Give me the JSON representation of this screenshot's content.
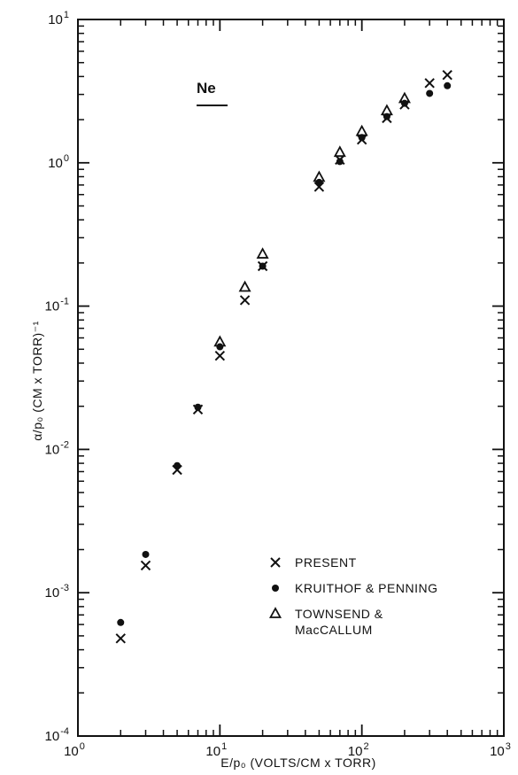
{
  "chart_data": {
    "type": "scatter",
    "annotation": "Ne",
    "xlabel": "E/p₀ (VOLTS/CM x TORR)",
    "ylabel": "α/p₀ (CM x TORR)⁻¹",
    "x_scale": "log",
    "y_scale": "log",
    "xlim": [
      1,
      1000
    ],
    "ylim": [
      0.0001,
      10
    ],
    "x_ticks": [
      {
        "value": 1,
        "base": "10",
        "exp": "0"
      },
      {
        "value": 10,
        "base": "10",
        "exp": "1"
      },
      {
        "value": 100,
        "base": "10",
        "exp": "2"
      },
      {
        "value": 1000,
        "base": "10",
        "exp": "3"
      }
    ],
    "y_ticks": [
      {
        "value": 0.0001,
        "base": "10",
        "exp": "-4"
      },
      {
        "value": 0.001,
        "base": "10",
        "exp": "-3"
      },
      {
        "value": 0.01,
        "base": "10",
        "exp": "-2"
      },
      {
        "value": 0.1,
        "base": "10",
        "exp": "-1"
      },
      {
        "value": 1,
        "base": "10",
        "exp": "0"
      },
      {
        "value": 10,
        "base": "10",
        "exp": "1"
      }
    ],
    "grid": false,
    "legend_position": "lower-right",
    "series": [
      {
        "name": "PRESENT",
        "marker": "x",
        "points": [
          {
            "x": 2,
            "y": 0.00048
          },
          {
            "x": 3,
            "y": 0.00155
          },
          {
            "x": 5,
            "y": 0.0072
          },
          {
            "x": 7,
            "y": 0.019
          },
          {
            "x": 10,
            "y": 0.045
          },
          {
            "x": 15,
            "y": 0.11
          },
          {
            "x": 20,
            "y": 0.19
          },
          {
            "x": 50,
            "y": 0.68
          },
          {
            "x": 70,
            "y": 1.05
          },
          {
            "x": 100,
            "y": 1.45
          },
          {
            "x": 150,
            "y": 2.05
          },
          {
            "x": 200,
            "y": 2.55
          },
          {
            "x": 300,
            "y": 3.6
          },
          {
            "x": 400,
            "y": 4.1
          }
        ]
      },
      {
        "name": "KRUITHOF & PENNING",
        "marker": "dot",
        "points": [
          {
            "x": 2,
            "y": 0.00062
          },
          {
            "x": 3,
            "y": 0.00185
          },
          {
            "x": 5,
            "y": 0.0077
          },
          {
            "x": 7,
            "y": 0.0197
          },
          {
            "x": 10,
            "y": 0.052
          },
          {
            "x": 20,
            "y": 0.19
          },
          {
            "x": 50,
            "y": 0.73
          },
          {
            "x": 70,
            "y": 1.02
          },
          {
            "x": 100,
            "y": 1.5
          },
          {
            "x": 150,
            "y": 2.1
          },
          {
            "x": 200,
            "y": 2.6
          },
          {
            "x": 300,
            "y": 3.05
          },
          {
            "x": 400,
            "y": 3.45
          }
        ]
      },
      {
        "name": "TOWNSEND & MacCALLUM",
        "marker": "triangle",
        "points": [
          {
            "x": 10,
            "y": 0.056
          },
          {
            "x": 15,
            "y": 0.135
          },
          {
            "x": 20,
            "y": 0.23
          },
          {
            "x": 50,
            "y": 0.79
          },
          {
            "x": 70,
            "y": 1.18
          },
          {
            "x": 100,
            "y": 1.65
          },
          {
            "x": 150,
            "y": 2.3
          },
          {
            "x": 200,
            "y": 2.8
          }
        ]
      }
    ],
    "legend": [
      {
        "marker": "x",
        "lines": [
          "PRESENT"
        ]
      },
      {
        "marker": "dot",
        "lines": [
          "KRUITHOF & PENNING"
        ]
      },
      {
        "marker": "triangle",
        "lines": [
          "TOWNSEND &",
          "MacCALLUM"
        ]
      }
    ]
  }
}
